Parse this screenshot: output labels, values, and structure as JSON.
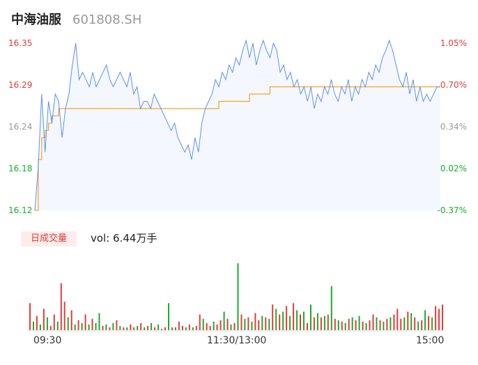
{
  "header": {
    "name": "中海油服",
    "code": "601808.SH"
  },
  "colors": {
    "price_line": "#5b8ff9",
    "avg_line": "#f5a623",
    "up": "#e63a3a",
    "down": "#1aab2c",
    "neutral": "#999999",
    "area_fill": "#f4f7fe"
  },
  "volume": {
    "badge": "日成交量",
    "label": "vol: 6.44万手"
  },
  "chart_data": {
    "type": "line",
    "ylim": [
      16.12,
      16.35
    ],
    "price_ticks": [
      "16.35",
      "16.29",
      "16.24",
      "16.18",
      "16.12"
    ],
    "pct_ticks": [
      "1.05%",
      "0.70%",
      "0.34%",
      "-0.02%",
      "-0.37%"
    ],
    "x_ticks": [
      "09:30",
      "11:30/13:00",
      "15:00"
    ],
    "series": [
      {
        "name": "price",
        "values": [
          16.12,
          16.18,
          16.28,
          16.2,
          16.27,
          16.24,
          16.28,
          16.27,
          16.22,
          16.26,
          16.28,
          16.32,
          16.35,
          16.3,
          16.31,
          16.3,
          16.29,
          16.31,
          16.29,
          16.3,
          16.31,
          16.32,
          16.3,
          16.29,
          16.3,
          16.31,
          16.3,
          16.29,
          16.31,
          16.28,
          16.29,
          16.26,
          16.27,
          16.27,
          16.26,
          16.28,
          16.27,
          16.26,
          16.25,
          16.24,
          16.23,
          16.24,
          16.22,
          16.21,
          16.2,
          16.21,
          16.19,
          16.22,
          16.2,
          16.24,
          16.26,
          16.27,
          16.28,
          16.3,
          16.29,
          16.31,
          16.3,
          16.32,
          16.31,
          16.33,
          16.32,
          16.34,
          16.36,
          16.33,
          16.35,
          16.32,
          16.34,
          16.36,
          16.34,
          16.33,
          16.35,
          16.34,
          16.31,
          16.32,
          16.3,
          16.31,
          16.29,
          16.3,
          16.28,
          16.29,
          16.27,
          16.29,
          16.26,
          16.28,
          16.27,
          16.29,
          16.28,
          16.3,
          16.28,
          16.27,
          16.29,
          16.28,
          16.3,
          16.27,
          16.29,
          16.28,
          16.3,
          16.29,
          16.31,
          16.3,
          16.32,
          16.31,
          16.33,
          16.34,
          16.36,
          16.34,
          16.32,
          16.3,
          16.29,
          16.31,
          16.28,
          16.3,
          16.27,
          16.29,
          16.27,
          16.28,
          16.27,
          16.28,
          16.29,
          16.29
        ]
      },
      {
        "name": "avg",
        "values": [
          16.12,
          16.19,
          16.22,
          16.23,
          16.24,
          16.25,
          16.25,
          16.26,
          16.26,
          16.26,
          16.26,
          16.26,
          16.26,
          16.26,
          16.26,
          16.26,
          16.26,
          16.26,
          16.26,
          16.26,
          16.26,
          16.26,
          16.26,
          16.26,
          16.26,
          16.26,
          16.26,
          16.26,
          16.26,
          16.26,
          16.26,
          16.26,
          16.26,
          16.26,
          16.26,
          16.26,
          16.26,
          16.26,
          16.26,
          16.26,
          16.26,
          16.26,
          16.26,
          16.26,
          16.26,
          16.26,
          16.26,
          16.26,
          16.26,
          16.26,
          16.26,
          16.26,
          16.26,
          16.26,
          16.27,
          16.27,
          16.27,
          16.27,
          16.27,
          16.27,
          16.27,
          16.27,
          16.27,
          16.28,
          16.28,
          16.28,
          16.28,
          16.28,
          16.28,
          16.29,
          16.29,
          16.29,
          16.29,
          16.29,
          16.29,
          16.29,
          16.29,
          16.29,
          16.29,
          16.29,
          16.29,
          16.29,
          16.29,
          16.29,
          16.29,
          16.29,
          16.29,
          16.29,
          16.29,
          16.29,
          16.29,
          16.29,
          16.29,
          16.29,
          16.29,
          16.29,
          16.29,
          16.29,
          16.29,
          16.29,
          16.29,
          16.29,
          16.29,
          16.29,
          16.29,
          16.29,
          16.29,
          16.29,
          16.29,
          16.29,
          16.29,
          16.29,
          16.29,
          16.29,
          16.29,
          16.29,
          16.29,
          16.29,
          16.29,
          16.29
        ]
      }
    ],
    "volume": {
      "values": [
        38,
        12,
        20,
        8,
        30,
        18,
        6,
        22,
        12,
        66,
        40,
        18,
        28,
        8,
        14,
        10,
        22,
        8,
        16,
        10,
        24,
        6,
        8,
        4,
        10,
        14,
        6,
        4,
        4,
        8,
        4,
        6,
        10,
        4,
        6,
        10,
        4,
        8,
        2,
        4,
        38,
        4,
        4,
        12,
        6,
        4,
        8,
        4,
        6,
        22,
        16,
        10,
        6,
        12,
        8,
        14,
        26,
        16,
        8,
        10,
        94,
        22,
        16,
        18,
        12,
        24,
        14,
        20,
        18,
        16,
        36,
        30,
        22,
        26,
        34,
        20,
        38,
        28,
        22,
        26,
        10,
        36,
        18,
        24,
        18,
        20,
        22,
        62,
        16,
        14,
        12,
        10,
        16,
        18,
        14,
        20,
        12,
        10,
        14,
        22,
        18,
        14,
        12,
        16,
        18,
        22,
        30,
        16,
        18,
        26,
        24,
        18,
        12,
        14,
        28,
        20,
        18,
        34,
        30,
        36
      ],
      "up": [
        1,
        0,
        1,
        0,
        1,
        0,
        1,
        1,
        0,
        1,
        1,
        0,
        1,
        0,
        1,
        0,
        1,
        0,
        1,
        0,
        0,
        1,
        0,
        1,
        0,
        1,
        0,
        1,
        0,
        1,
        1,
        0,
        1,
        0,
        1,
        0,
        1,
        0,
        1,
        1,
        0,
        1,
        0,
        1,
        1,
        0,
        1,
        0,
        1,
        1,
        0,
        1,
        1,
        0,
        1,
        1,
        0,
        1,
        0,
        1,
        0,
        1,
        0,
        1,
        0,
        1,
        1,
        0,
        1,
        0,
        1,
        0,
        1,
        0,
        1,
        0,
        1,
        0,
        1,
        0,
        1,
        0,
        1,
        0,
        1,
        0,
        1,
        0,
        1,
        0,
        1,
        0,
        1,
        0,
        1,
        0,
        1,
        0,
        1,
        1,
        0,
        1,
        0,
        1,
        0,
        1,
        1,
        1,
        0,
        1,
        0,
        1,
        0,
        1,
        0,
        1,
        0,
        1,
        1,
        1
      ]
    }
  }
}
